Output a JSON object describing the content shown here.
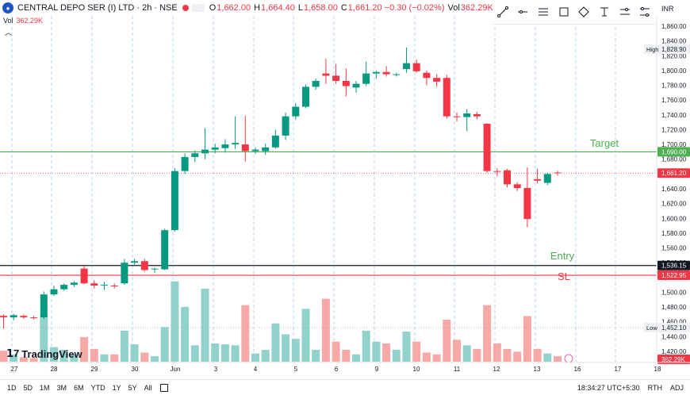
{
  "header": {
    "symbol": "CENTRAL DEPO SER (I) LTD · 2h · NSE",
    "ohlc": [
      {
        "label": "O",
        "value": "1,662.00"
      },
      {
        "label": "H",
        "value": "1,664.40"
      },
      {
        "label": "L",
        "value": "1,658.00"
      },
      {
        "label": "C",
        "value": "1,661.20 −0.30 (−0.02%)"
      },
      {
        "label": "Vol",
        "value": "362.29K"
      }
    ]
  },
  "volume_row": {
    "label": "Vol",
    "value": "362.29K"
  },
  "currency": "INR",
  "toolbar": {
    "icons": [
      "trend-line-icon",
      "horizontal-ray-icon",
      "text-lines-icon",
      "rectangle-icon",
      "brush-icon",
      "text-icon",
      "measure-icon",
      "settings-lines-icon"
    ]
  },
  "brand": {
    "name": "TradingView"
  },
  "bottom": {
    "ranges": [
      "1D",
      "5D",
      "1M",
      "3M",
      "6M",
      "YTD",
      "1Y",
      "5Y",
      "All"
    ],
    "time": "18:34:27 UTC+5:30",
    "session": "RTH",
    "adj": "ADJ"
  },
  "colors": {
    "up": "#089981",
    "down": "#f23645",
    "vol_up": "#92d2cc",
    "vol_down": "#f7a9a7",
    "target": "#4caf50",
    "sl": "#f23645",
    "grid": "#5b9cf6"
  },
  "chart_data": {
    "type": "candlestick",
    "x_labels": [
      "27",
      "28",
      "29",
      "30",
      "Jun",
      "3",
      "4",
      "5",
      "6",
      "9",
      "10",
      "11",
      "12",
      "13",
      "16",
      "17",
      "18"
    ],
    "y_ticks": [
      "1,860.00",
      "1,840.00",
      "1,820.00",
      "1,800.00",
      "1,780.00",
      "1,760.00",
      "1,740.00",
      "1,720.00",
      "1,700.00",
      "1,680.00",
      "1,660.00",
      "1,640.00",
      "1,620.00",
      "1,600.00",
      "1,580.00",
      "1,560.00",
      "1,540.00",
      "1,520.00",
      "1,500.00",
      "1,480.00",
      "1,460.00",
      "1,440.00",
      "1,420.00"
    ],
    "ylim": [
      1406,
      1874
    ],
    "candles": [
      {
        "o": 1468,
        "h": 1470,
        "l": 1451,
        "c": 1466,
        "v": 0.12
      },
      {
        "o": 1466,
        "h": 1471,
        "l": 1462,
        "c": 1469,
        "v": 0.08
      },
      {
        "o": 1468,
        "h": 1470,
        "l": 1464,
        "c": 1466,
        "v": 0.05
      },
      {
        "o": 1466,
        "h": 1468,
        "l": 1463,
        "c": 1465,
        "v": 0.04
      },
      {
        "o": 1466,
        "h": 1501,
        "l": 1464,
        "c": 1497,
        "v": 0.5
      },
      {
        "o": 1497,
        "h": 1509,
        "l": 1495,
        "c": 1504,
        "v": 0.16
      },
      {
        "o": 1504,
        "h": 1512,
        "l": 1502,
        "c": 1510,
        "v": 0.13
      },
      {
        "o": 1510,
        "h": 1515,
        "l": 1507,
        "c": 1513,
        "v": 0.08
      },
      {
        "o": 1532,
        "h": 1536,
        "l": 1511,
        "c": 1512,
        "v": 0.27
      },
      {
        "o": 1512,
        "h": 1516,
        "l": 1505,
        "c": 1509,
        "v": 0.14
      },
      {
        "o": 1509,
        "h": 1514,
        "l": 1503,
        "c": 1510,
        "v": 0.08
      },
      {
        "o": 1509,
        "h": 1512,
        "l": 1505,
        "c": 1508,
        "v": 0.08
      },
      {
        "o": 1512,
        "h": 1545,
        "l": 1510,
        "c": 1540,
        "v": 0.34
      },
      {
        "o": 1540,
        "h": 1545,
        "l": 1535,
        "c": 1542,
        "v": 0.19
      },
      {
        "o": 1542,
        "h": 1545,
        "l": 1528,
        "c": 1530,
        "v": 0.1
      },
      {
        "o": 1531,
        "h": 1533,
        "l": 1526,
        "c": 1532,
        "v": 0.06
      },
      {
        "o": 1531,
        "h": 1586,
        "l": 1530,
        "c": 1584,
        "v": 0.38
      },
      {
        "o": 1584,
        "h": 1668,
        "l": 1582,
        "c": 1664,
        "v": 0.88
      },
      {
        "o": 1664,
        "h": 1688,
        "l": 1660,
        "c": 1683,
        "v": 0.6
      },
      {
        "o": 1683,
        "h": 1692,
        "l": 1676,
        "c": 1688,
        "v": 0.18
      },
      {
        "o": 1688,
        "h": 1722,
        "l": 1680,
        "c": 1693,
        "v": 0.8
      },
      {
        "o": 1693,
        "h": 1701,
        "l": 1688,
        "c": 1696,
        "v": 0.2
      },
      {
        "o": 1695,
        "h": 1707,
        "l": 1689,
        "c": 1700,
        "v": 0.19
      },
      {
        "o": 1700,
        "h": 1738,
        "l": 1694,
        "c": 1702,
        "v": 0.18
      },
      {
        "o": 1700,
        "h": 1739,
        "l": 1677,
        "c": 1691,
        "v": 0.62
      },
      {
        "o": 1691,
        "h": 1696,
        "l": 1687,
        "c": 1693,
        "v": 0.09
      },
      {
        "o": 1691,
        "h": 1701,
        "l": 1686,
        "c": 1696,
        "v": 0.13
      },
      {
        "o": 1696,
        "h": 1720,
        "l": 1694,
        "c": 1712,
        "v": 0.42
      },
      {
        "o": 1712,
        "h": 1743,
        "l": 1706,
        "c": 1738,
        "v": 0.3
      },
      {
        "o": 1738,
        "h": 1756,
        "l": 1733,
        "c": 1751,
        "v": 0.25
      },
      {
        "o": 1751,
        "h": 1781,
        "l": 1749,
        "c": 1778,
        "v": 0.58
      },
      {
        "o": 1778,
        "h": 1789,
        "l": 1774,
        "c": 1786,
        "v": 0.13
      },
      {
        "o": 1796,
        "h": 1816,
        "l": 1782,
        "c": 1793,
        "v": 0.69
      },
      {
        "o": 1793,
        "h": 1809,
        "l": 1782,
        "c": 1786,
        "v": 0.22
      },
      {
        "o": 1786,
        "h": 1803,
        "l": 1765,
        "c": 1779,
        "v": 0.13
      },
      {
        "o": 1777,
        "h": 1786,
        "l": 1770,
        "c": 1782,
        "v": 0.08
      },
      {
        "o": 1782,
        "h": 1812,
        "l": 1779,
        "c": 1796,
        "v": 0.34
      },
      {
        "o": 1796,
        "h": 1800,
        "l": 1789,
        "c": 1798,
        "v": 0.22
      },
      {
        "o": 1798,
        "h": 1806,
        "l": 1792,
        "c": 1795,
        "v": 0.2
      },
      {
        "o": 1794,
        "h": 1797,
        "l": 1792,
        "c": 1795,
        "v": 0.13
      },
      {
        "o": 1802,
        "h": 1831,
        "l": 1797,
        "c": 1810,
        "v": 0.33
      },
      {
        "o": 1810,
        "h": 1815,
        "l": 1797,
        "c": 1799,
        "v": 0.22
      },
      {
        "o": 1797,
        "h": 1800,
        "l": 1780,
        "c": 1790,
        "v": 0.1
      },
      {
        "o": 1790,
        "h": 1795,
        "l": 1778,
        "c": 1785,
        "v": 0.08
      },
      {
        "o": 1790,
        "h": 1794,
        "l": 1735,
        "c": 1738,
        "v": 0.46
      },
      {
        "o": 1738,
        "h": 1743,
        "l": 1731,
        "c": 1737,
        "v": 0.24
      },
      {
        "o": 1737,
        "h": 1748,
        "l": 1718,
        "c": 1742,
        "v": 0.18
      },
      {
        "o": 1741,
        "h": 1744,
        "l": 1734,
        "c": 1738,
        "v": 0.14
      },
      {
        "o": 1728,
        "h": 1729,
        "l": 1662,
        "c": 1664,
        "v": 0.62
      },
      {
        "o": 1664,
        "h": 1668,
        "l": 1657,
        "c": 1663,
        "v": 0.2
      },
      {
        "o": 1665,
        "h": 1667,
        "l": 1642,
        "c": 1646,
        "v": 0.14
      },
      {
        "o": 1646,
        "h": 1649,
        "l": 1637,
        "c": 1641,
        "v": 0.11
      },
      {
        "o": 1641,
        "h": 1669,
        "l": 1588,
        "c": 1599,
        "v": 0.5
      },
      {
        "o": 1653,
        "h": 1667,
        "l": 1647,
        "c": 1651,
        "v": 0.14
      },
      {
        "o": 1648,
        "h": 1662,
        "l": 1645,
        "c": 1660,
        "v": 0.09
      },
      {
        "o": 1662,
        "h": 1664.4,
        "l": 1658,
        "c": 1661.2,
        "v": 0.06
      }
    ],
    "levels": [
      {
        "name": "Target",
        "value": 1690.0,
        "label": "1,690.00"
      },
      {
        "name": "Entry",
        "value": 1536.15,
        "label": "1,536.15"
      },
      {
        "name": "SL",
        "value": 1522.95,
        "label": "1,522.95"
      }
    ],
    "high": {
      "label": "High",
      "value": "1,828.90"
    },
    "low": {
      "label": "Low",
      "value": "1,452.10"
    },
    "last_price": {
      "value": 1661.2,
      "label": "1,661.20"
    },
    "volume_last": "362.29K"
  }
}
